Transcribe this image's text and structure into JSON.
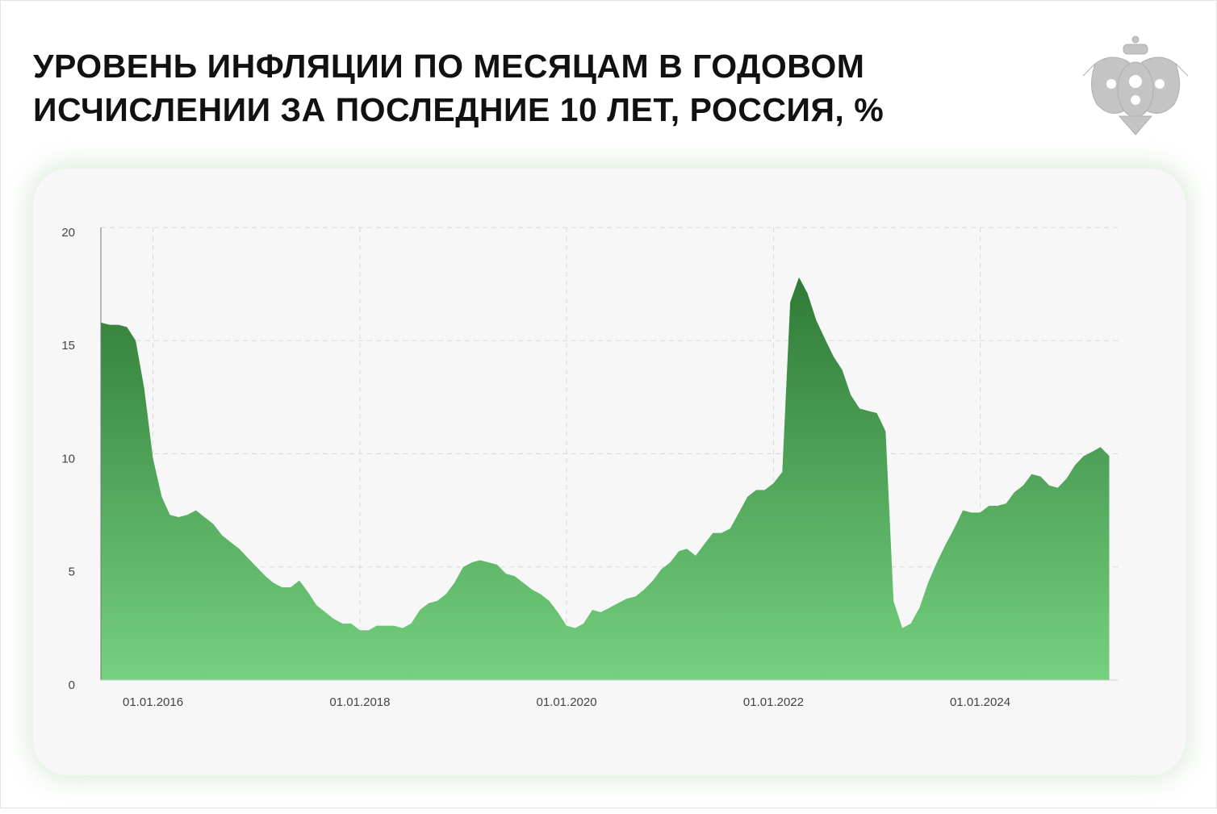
{
  "chart_data": {
    "type": "area",
    "title": "УРОВЕНЬ ИНФЛЯЦИИ ПО МЕСЯЦАМ В ГОДОВОМ ИСЧИСЛЕНИИ ЗА ПОСЛЕДНИЕ 10 ЛЕТ, РОССИЯ, %",
    "x": [
      "2015-07-01",
      "2015-08-01",
      "2015-09-01",
      "2015-10-01",
      "2015-11-01",
      "2015-12-01",
      "2016-01-01",
      "2016-02-01",
      "2016-03-01",
      "2016-04-01",
      "2016-05-01",
      "2016-06-01",
      "2016-07-01",
      "2016-08-01",
      "2016-09-01",
      "2016-10-01",
      "2016-11-01",
      "2016-12-01",
      "2017-01-01",
      "2017-02-01",
      "2017-03-01",
      "2017-04-01",
      "2017-05-01",
      "2017-06-01",
      "2017-07-01",
      "2017-08-01",
      "2017-09-01",
      "2017-10-01",
      "2017-11-01",
      "2017-12-01",
      "2018-01-01",
      "2018-02-01",
      "2018-03-01",
      "2018-04-01",
      "2018-05-01",
      "2018-06-01",
      "2018-07-01",
      "2018-08-01",
      "2018-09-01",
      "2018-10-01",
      "2018-11-01",
      "2018-12-01",
      "2019-01-01",
      "2019-02-01",
      "2019-03-01",
      "2019-04-01",
      "2019-05-01",
      "2019-06-01",
      "2019-07-01",
      "2019-08-01",
      "2019-09-01",
      "2019-10-01",
      "2019-11-01",
      "2019-12-01",
      "2020-01-01",
      "2020-02-01",
      "2020-03-01",
      "2020-04-01",
      "2020-05-01",
      "2020-06-01",
      "2020-07-01",
      "2020-08-01",
      "2020-09-01",
      "2020-10-01",
      "2020-11-01",
      "2020-12-01",
      "2021-01-01",
      "2021-02-01",
      "2021-03-01",
      "2021-04-01",
      "2021-05-01",
      "2021-06-01",
      "2021-07-01",
      "2021-08-01",
      "2021-09-01",
      "2021-10-01",
      "2021-11-01",
      "2021-12-01",
      "2022-01-01",
      "2022-02-01",
      "2022-03-01",
      "2022-04-01",
      "2022-05-01",
      "2022-06-01",
      "2022-07-01",
      "2022-08-01",
      "2022-09-01",
      "2022-10-01",
      "2022-11-01",
      "2022-12-01",
      "2023-01-01",
      "2023-02-01",
      "2023-03-01",
      "2023-04-01",
      "2023-05-01",
      "2023-06-01",
      "2023-07-01",
      "2023-08-01",
      "2023-09-01",
      "2023-10-01",
      "2023-11-01",
      "2023-12-01",
      "2024-01-01",
      "2024-02-01",
      "2024-03-01",
      "2024-04-01",
      "2024-05-01",
      "2024-06-01",
      "2024-07-01",
      "2024-08-01",
      "2024-09-01",
      "2024-10-01",
      "2024-11-01",
      "2024-12-01",
      "2025-01-01",
      "2025-02-01",
      "2025-03-01",
      "2025-04-01"
    ],
    "values": [
      15.8,
      15.7,
      15.7,
      15.6,
      15.0,
      12.9,
      9.8,
      8.1,
      7.3,
      7.2,
      7.3,
      7.5,
      7.2,
      6.9,
      6.4,
      6.1,
      5.8,
      5.4,
      5.0,
      4.6,
      4.3,
      4.1,
      4.1,
      4.4,
      3.9,
      3.3,
      3.0,
      2.7,
      2.5,
      2.5,
      2.2,
      2.2,
      2.4,
      2.4,
      2.4,
      2.3,
      2.5,
      3.1,
      3.4,
      3.5,
      3.8,
      4.3,
      5.0,
      5.2,
      5.3,
      5.2,
      5.1,
      4.7,
      4.6,
      4.3,
      4.0,
      3.8,
      3.5,
      3.0,
      2.4,
      2.3,
      2.5,
      3.1,
      3.0,
      3.2,
      3.4,
      3.6,
      3.7,
      4.0,
      4.4,
      4.9,
      5.2,
      5.7,
      5.8,
      5.5,
      6.0,
      6.5,
      6.5,
      6.7,
      7.4,
      8.1,
      8.4,
      8.4,
      8.7,
      9.2,
      16.7,
      17.8,
      17.1,
      15.9,
      15.1,
      14.3,
      13.7,
      12.6,
      12.0,
      11.9,
      11.8,
      11.0,
      3.5,
      2.3,
      2.5,
      3.2,
      4.3,
      5.2,
      6.0,
      6.7,
      7.5,
      7.4,
      7.4,
      7.7,
      7.7,
      7.8,
      8.3,
      8.6,
      9.1,
      9.0,
      8.6,
      8.5,
      8.9,
      9.5,
      9.9,
      10.1,
      10.3,
      9.9
    ],
    "color": "#4e9e55",
    "xlim": [
      "2015-07-01",
      "2025-05-01"
    ],
    "xticks": [
      {
        "value": "2016-01-01",
        "label": "01.01.2016"
      },
      {
        "value": "2018-01-01",
        "label": "01.01.2018"
      },
      {
        "value": "2020-01-01",
        "label": "01.01.2020"
      },
      {
        "value": "2022-01-01",
        "label": "01.01.2022"
      },
      {
        "value": "2024-01-01",
        "label": "01.01.2024"
      }
    ],
    "ylim": [
      0,
      20
    ],
    "yticks": [
      0,
      5,
      10,
      15,
      20
    ],
    "grid": true
  }
}
